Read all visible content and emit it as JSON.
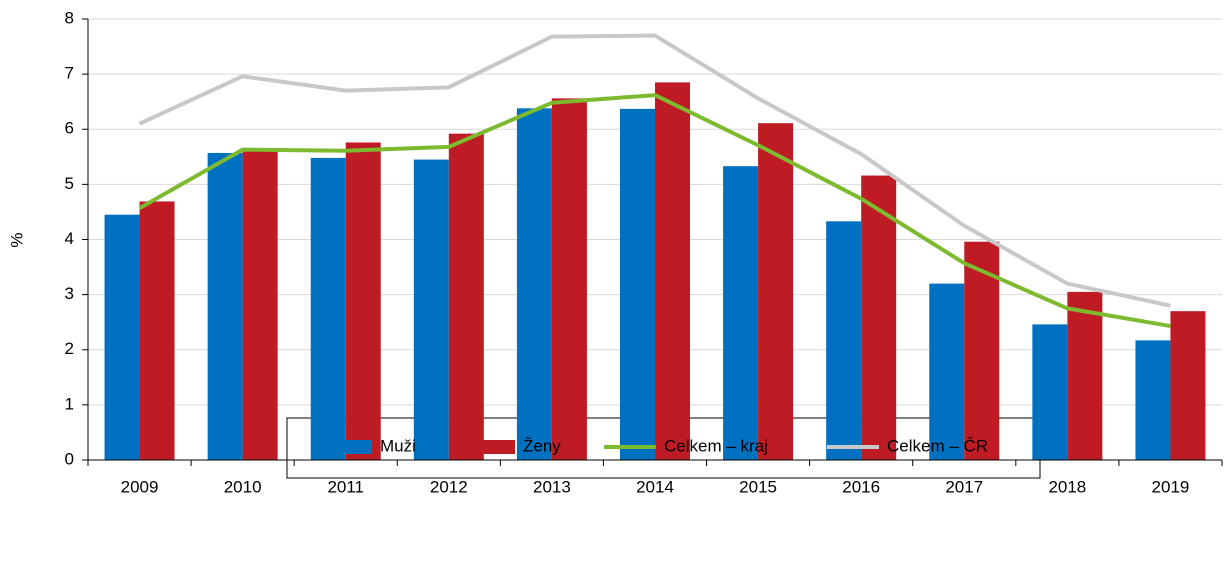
{
  "chart_data": {
    "type": "bar",
    "y_label": "%",
    "categories": [
      "2009",
      "2010",
      "2011",
      "2012",
      "2013",
      "2014",
      "2015",
      "2016",
      "2017",
      "2018",
      "2019"
    ],
    "series": [
      {
        "name": "Muži",
        "type": "bar",
        "color": "#0070c0",
        "values": [
          4.45,
          5.57,
          5.48,
          5.45,
          6.38,
          6.37,
          5.33,
          4.33,
          3.2,
          2.46,
          2.17
        ]
      },
      {
        "name": "Ženy",
        "type": "bar",
        "color": "#be1b24",
        "values": [
          4.69,
          5.65,
          5.76,
          5.92,
          6.56,
          6.85,
          6.11,
          5.16,
          3.96,
          3.05,
          2.7
        ]
      },
      {
        "name": "Celkem – kraj",
        "type": "line",
        "color": "#7dba2f",
        "values": [
          4.57,
          5.63,
          5.61,
          5.68,
          6.48,
          6.62,
          5.71,
          4.74,
          3.57,
          2.75,
          2.43
        ]
      },
      {
        "name": "Celkem – ČR",
        "type": "line",
        "color": "#c8c8c8",
        "values": [
          6.1,
          6.96,
          6.7,
          6.76,
          7.68,
          7.7,
          6.56,
          5.55,
          4.25,
          3.2,
          2.8
        ]
      }
    ],
    "ylim": [
      0,
      8
    ],
    "yticks": [
      0,
      1,
      2,
      3,
      4,
      5,
      6,
      7,
      8
    ],
    "grid": true,
    "legend": "bottom"
  }
}
